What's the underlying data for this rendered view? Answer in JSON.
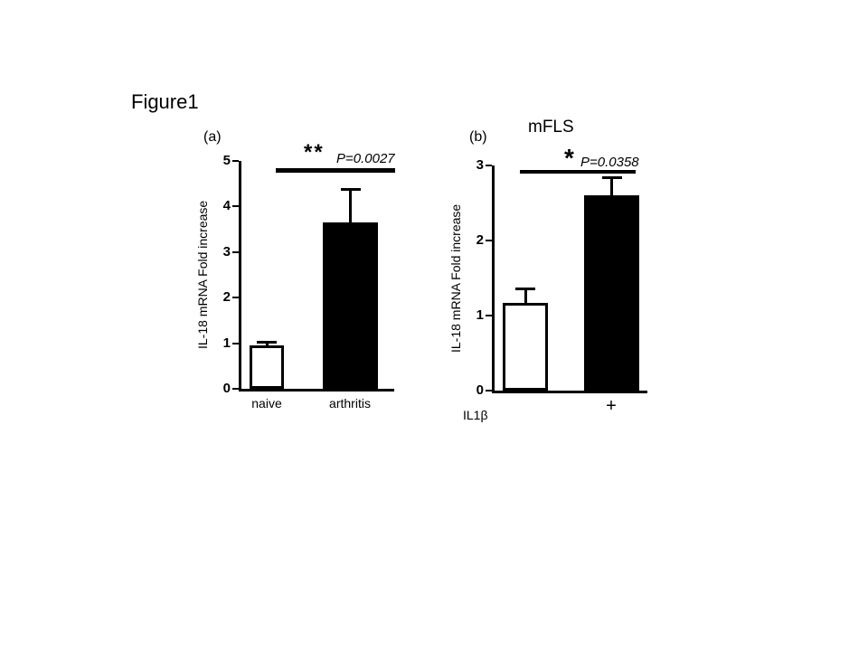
{
  "figure_title": "Figure1",
  "chart_data": [
    {
      "type": "bar",
      "panel_label": "(a)",
      "title": "",
      "categories": [
        "naive",
        "arthritis"
      ],
      "values": [
        0.95,
        3.65
      ],
      "errors": [
        0.1,
        0.75
      ],
      "bar_colors": [
        "#ffffff",
        "#000000"
      ],
      "ylabel": "IL-18 mRNA Fold  increase",
      "ylim": [
        0,
        5
      ],
      "yticks": [
        0,
        1,
        2,
        3,
        4,
        5
      ],
      "grid": "off",
      "significance": "**",
      "pvalue": "P=0.0027",
      "xlabel": ""
    },
    {
      "type": "bar",
      "panel_label": "(b)",
      "title": "mFLS",
      "categories": [
        "-",
        "+"
      ],
      "values": [
        1.17,
        2.6
      ],
      "errors": [
        0.2,
        0.25
      ],
      "bar_colors": [
        "#ffffff",
        "#000000"
      ],
      "ylabel": "IL-18 mRNA Fold  increase",
      "ylim": [
        0,
        3
      ],
      "yticks": [
        0,
        1,
        2,
        3
      ],
      "grid": "off",
      "significance": "*",
      "pvalue": "P=0.0358",
      "xlabel": "IL1β"
    }
  ]
}
